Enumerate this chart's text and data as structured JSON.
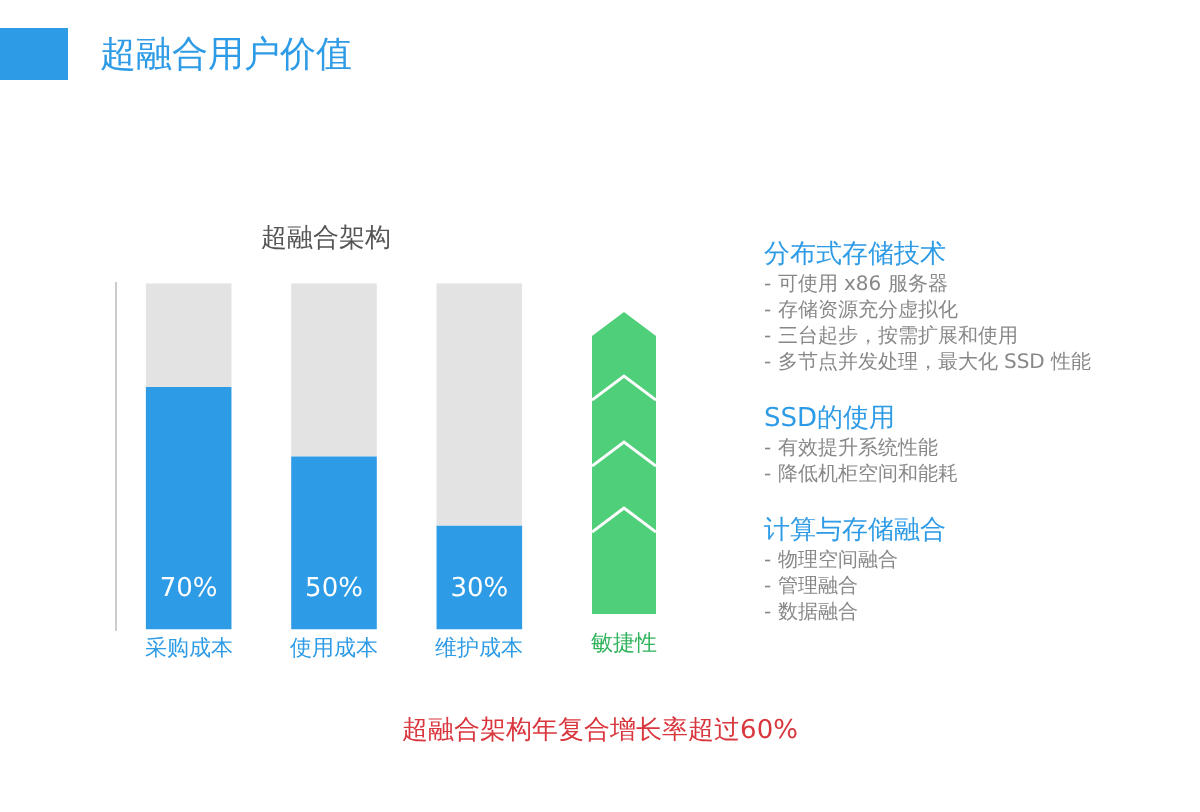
{
  "chart_data": {
    "type": "bar",
    "title": "超融合用户价值",
    "subtitle": "超融合架构",
    "categories": [
      "采购成本",
      "使用成本",
      "维护成本"
    ],
    "stacked": true,
    "grid": false,
    "legend": false,
    "series": [
      {
        "color": "#2e9be6",
        "values": [
          70,
          50,
          30
        ],
        "value_labels": [
          "70%",
          "50%",
          "30%"
        ]
      },
      {
        "color": "#e3e3e3",
        "values": [
          30,
          50,
          70
        ]
      }
    ],
    "annotations": [
      "敏捷性",
      "分布式存储技术",
      "- 可使用 x86 服务器",
      "- 存储资源充分虚拟化",
      "- 三台起步，按需扩展和使用",
      "- 多节点并发处理，最大化 SSD 性能",
      "SSD的使用",
      "- 有效提升系统性能",
      "- 降低机柜空间和能耗",
      "计算与存储融合",
      "- 物理空间融合",
      "- 管理融合",
      "- 数据融合",
      "超融合架构年复合增长率超过60%"
    ]
  }
}
